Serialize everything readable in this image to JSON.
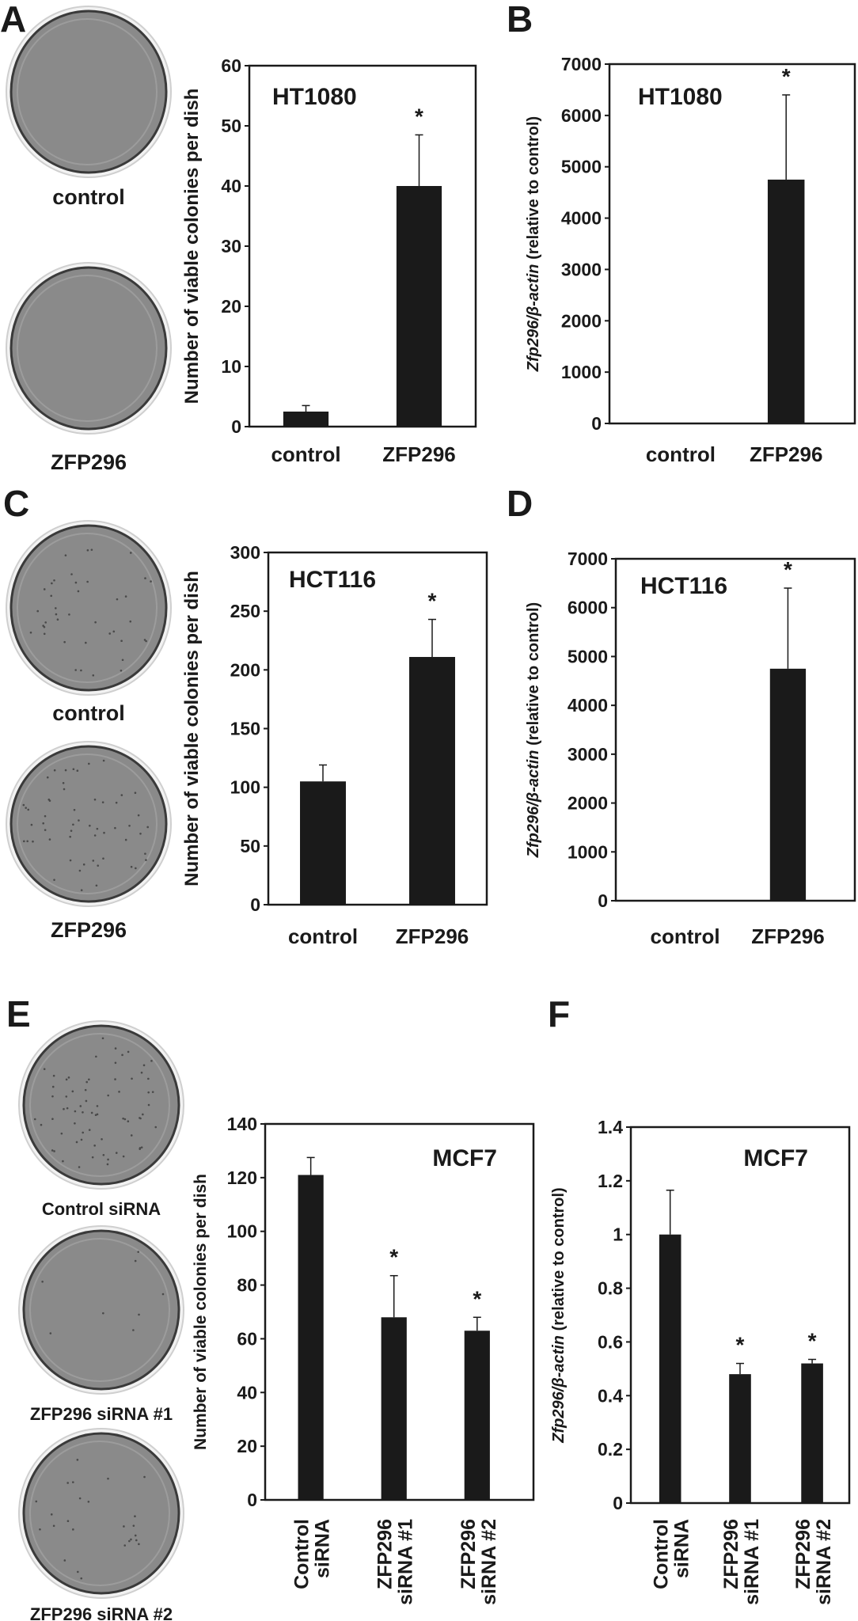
{
  "panel_letters": [
    "A",
    "B",
    "C",
    "D",
    "E",
    "F"
  ],
  "plates": {
    "A": [
      "control",
      "ZFP296"
    ],
    "C": [
      "control",
      "ZFP296"
    ],
    "E": [
      "Control siRNA",
      "ZFP296 siRNA #1",
      "ZFP296 siRNA #2"
    ]
  },
  "colors": {
    "bar": "#1a1a1a",
    "plate": "#8a8a8a",
    "plate_rim": "#3a3a3a"
  },
  "chart_data": [
    {
      "panel": "A",
      "type": "bar",
      "title": "HT1080",
      "ylabel": "Number of viable colonies per dish",
      "ylabel_italic": "",
      "ylim": [
        0,
        60
      ],
      "ticks": [
        "0",
        "10",
        "20",
        "30",
        "40",
        "50",
        "60"
      ],
      "tick_values": [
        0,
        10,
        20,
        30,
        40,
        50,
        60
      ],
      "categories": [
        [
          "control"
        ],
        [
          "ZFP296"
        ]
      ],
      "values": [
        2.5,
        40
      ],
      "errors": [
        1,
        8.5
      ],
      "significant": [
        false,
        true
      ],
      "sig_mark": "*"
    },
    {
      "panel": "B",
      "type": "bar",
      "title": "HT1080",
      "ylabel": " (relative to control)",
      "ylabel_italic": "Zfp296/β-actin",
      "ylim": [
        0,
        7000
      ],
      "ticks": [
        "0",
        "1000",
        "2000",
        "3000",
        "4000",
        "5000",
        "6000",
        "7000"
      ],
      "tick_values": [
        0,
        1000,
        2000,
        3000,
        4000,
        5000,
        6000,
        7000
      ],
      "categories": [
        [
          "control"
        ],
        [
          "ZFP296"
        ]
      ],
      "values": [
        1,
        4750
      ],
      "errors": [
        0,
        1650
      ],
      "significant": [
        false,
        true
      ],
      "sig_mark": "*"
    },
    {
      "panel": "C",
      "type": "bar",
      "title": "HCT116",
      "ylabel": "Number of viable colonies per dish",
      "ylabel_italic": "",
      "ylim": [
        0,
        300
      ],
      "ticks": [
        "0",
        "50",
        "100",
        "150",
        "200",
        "250",
        "300"
      ],
      "tick_values": [
        0,
        50,
        100,
        150,
        200,
        250,
        300
      ],
      "categories": [
        [
          "control"
        ],
        [
          "ZFP296"
        ]
      ],
      "values": [
        105,
        211
      ],
      "errors": [
        14,
        32
      ],
      "significant": [
        false,
        true
      ],
      "sig_mark": "*"
    },
    {
      "panel": "D",
      "type": "bar",
      "title": "HCT116",
      "ylabel": " (relative to control)",
      "ylabel_italic": "Zfp296/β-actin",
      "ylim": [
        0,
        7000
      ],
      "ticks": [
        "0",
        "1000",
        "2000",
        "3000",
        "4000",
        "5000",
        "6000",
        "7000"
      ],
      "tick_values": [
        0,
        1000,
        2000,
        3000,
        4000,
        5000,
        6000,
        7000
      ],
      "categories": [
        [
          "control"
        ],
        [
          "ZFP296"
        ]
      ],
      "values": [
        1,
        4750
      ],
      "errors": [
        0,
        1650
      ],
      "significant": [
        false,
        true
      ],
      "sig_mark": "*"
    },
    {
      "panel": "E",
      "type": "bar",
      "title": "MCF7",
      "ylabel": "Number of viable colonies per dish",
      "ylabel_italic": "",
      "ylim": [
        0,
        140
      ],
      "ticks": [
        "0",
        "20",
        "40",
        "60",
        "80",
        "100",
        "120",
        "140"
      ],
      "tick_values": [
        0,
        20,
        40,
        60,
        80,
        100,
        120,
        140
      ],
      "categories": [
        [
          "Control",
          "siRNA"
        ],
        [
          "ZFP296",
          "siRNA #1"
        ],
        [
          "ZFP296",
          "siRNA #2"
        ]
      ],
      "values": [
        121,
        68,
        63
      ],
      "errors": [
        6.5,
        15.5,
        5
      ],
      "significant": [
        false,
        true,
        true
      ],
      "sig_mark": "*"
    },
    {
      "panel": "F",
      "type": "bar",
      "title": "MCF7",
      "ylabel": " (relative to control)",
      "ylabel_italic": "Zfp296/β-actin",
      "ylim": [
        0,
        1.4
      ],
      "ticks": [
        "0",
        "0.2",
        "0.4",
        "0.6",
        "0.8",
        "1",
        "1.2",
        "1.4"
      ],
      "tick_values": [
        0,
        0.2,
        0.4,
        0.6,
        0.8,
        1,
        1.2,
        1.4
      ],
      "categories": [
        [
          "Control",
          "siRNA"
        ],
        [
          "ZFP296",
          "siRNA #1"
        ],
        [
          "ZFP296",
          "siRNA #2"
        ]
      ],
      "values": [
        1.0,
        0.48,
        0.52
      ],
      "errors": [
        0.165,
        0.04,
        0.015
      ],
      "significant": [
        false,
        true,
        true
      ],
      "sig_mark": "*"
    }
  ]
}
